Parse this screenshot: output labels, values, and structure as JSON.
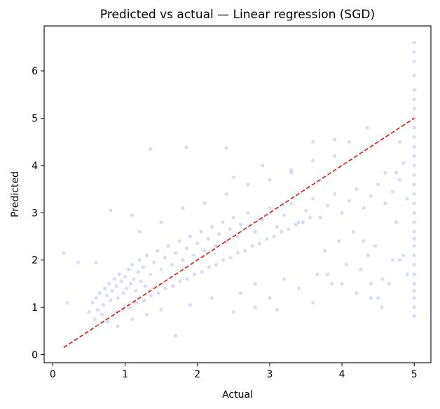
{
  "chart_data": {
    "type": "scatter",
    "title": "Predicted vs actual — Linear regression (SGD)",
    "xlabel": "Actual",
    "ylabel": "Predicted",
    "xlim": [
      -0.12,
      5.23
    ],
    "ylim": [
      -0.17,
      6.95
    ],
    "xticks": [
      0,
      1,
      2,
      3,
      4,
      5
    ],
    "yticks": [
      0,
      1,
      2,
      3,
      4,
      5,
      6
    ],
    "grid": false,
    "series": [
      {
        "kind": "scatter",
        "color": "#7b8af0",
        "opacity": 0.3,
        "points": [
          [
            0.5,
            0.9
          ],
          [
            0.55,
            1.1
          ],
          [
            0.6,
            1.2
          ],
          [
            0.62,
            0.95
          ],
          [
            0.65,
            1.3
          ],
          [
            0.7,
            1.05
          ],
          [
            0.72,
            1.4
          ],
          [
            0.75,
            1.25
          ],
          [
            0.78,
            1.5
          ],
          [
            0.8,
            1.15
          ],
          [
            0.82,
            1.35
          ],
          [
            0.85,
            1.6
          ],
          [
            0.88,
            1.45
          ],
          [
            0.9,
            1.2
          ],
          [
            0.92,
            1.7
          ],
          [
            0.95,
            1.55
          ],
          [
            0.98,
            1.3
          ],
          [
            1.0,
            1.65
          ],
          [
            1.02,
            1.4
          ],
          [
            1.05,
            1.8
          ],
          [
            1.08,
            1.5
          ],
          [
            1.1,
            1.9
          ],
          [
            1.12,
            1.6
          ],
          [
            1.15,
            1.35
          ],
          [
            1.18,
            1.75
          ],
          [
            1.2,
            2.0
          ],
          [
            1.22,
            1.55
          ],
          [
            1.25,
            1.85
          ],
          [
            1.28,
            1.45
          ],
          [
            1.3,
            2.1
          ],
          [
            1.35,
            1.7
          ],
          [
            1.4,
            1.95
          ],
          [
            1.45,
            2.2
          ],
          [
            1.5,
            1.8
          ],
          [
            1.55,
            2.05
          ],
          [
            1.6,
            2.3
          ],
          [
            1.65,
            1.9
          ],
          [
            1.7,
            2.15
          ],
          [
            1.75,
            2.4
          ],
          [
            1.8,
            2.0
          ],
          [
            1.85,
            2.25
          ],
          [
            1.9,
            2.5
          ],
          [
            1.95,
            2.1
          ],
          [
            2.0,
            2.35
          ],
          [
            2.05,
            2.6
          ],
          [
            2.1,
            2.2
          ],
          [
            2.15,
            2.45
          ],
          [
            2.2,
            2.7
          ],
          [
            2.25,
            2.3
          ],
          [
            2.3,
            2.55
          ],
          [
            2.35,
            2.8
          ],
          [
            2.4,
            2.4
          ],
          [
            2.45,
            2.65
          ],
          [
            2.5,
            2.9
          ],
          [
            2.55,
            2.5
          ],
          [
            2.6,
            2.75
          ],
          [
            2.7,
            3.0
          ],
          [
            2.8,
            2.6
          ],
          [
            2.9,
            2.85
          ],
          [
            3.0,
            3.1
          ],
          [
            3.1,
            2.7
          ],
          [
            3.2,
            2.95
          ],
          [
            3.3,
            3.2
          ],
          [
            3.4,
            2.8
          ],
          [
            3.5,
            3.05
          ],
          [
            3.6,
            3.3
          ],
          [
            3.7,
            2.9
          ],
          [
            3.8,
            3.15
          ],
          [
            3.9,
            3.4
          ],
          [
            4.0,
            3.0
          ],
          [
            4.1,
            3.25
          ],
          [
            4.2,
            3.5
          ],
          [
            4.3,
            3.1
          ],
          [
            4.4,
            3.35
          ],
          [
            4.5,
            3.6
          ],
          [
            4.6,
            3.2
          ],
          [
            4.7,
            3.45
          ],
          [
            4.8,
            3.7
          ],
          [
            4.9,
            3.3
          ],
          [
            0.58,
            0.75
          ],
          [
            0.68,
            0.85
          ],
          [
            0.76,
            0.7
          ],
          [
            0.88,
            0.9
          ],
          [
            0.96,
            0.95
          ],
          [
            1.06,
            1.0
          ],
          [
            1.16,
            1.1
          ],
          [
            1.26,
            1.15
          ],
          [
            1.36,
            1.25
          ],
          [
            1.46,
            1.3
          ],
          [
            1.56,
            1.4
          ],
          [
            1.66,
            1.45
          ],
          [
            1.76,
            1.55
          ],
          [
            1.86,
            1.6
          ],
          [
            1.96,
            1.7
          ],
          [
            2.06,
            1.75
          ],
          [
            2.16,
            1.85
          ],
          [
            2.26,
            1.9
          ],
          [
            2.36,
            2.0
          ],
          [
            2.46,
            2.05
          ],
          [
            2.56,
            2.15
          ],
          [
            2.66,
            2.2
          ],
          [
            2.76,
            2.3
          ],
          [
            2.86,
            2.35
          ],
          [
            2.96,
            2.45
          ],
          [
            3.06,
            2.5
          ],
          [
            3.16,
            2.6
          ],
          [
            3.26,
            2.65
          ],
          [
            3.36,
            2.75
          ],
          [
            3.46,
            2.8
          ],
          [
            3.56,
            2.9
          ],
          [
            3.66,
            1.7
          ],
          [
            3.76,
            2.2
          ],
          [
            3.86,
            1.5
          ],
          [
            3.96,
            2.4
          ],
          [
            4.06,
            1.9
          ],
          [
            4.16,
            2.6
          ],
          [
            4.26,
            1.8
          ],
          [
            4.36,
            2.1
          ],
          [
            4.46,
            2.3
          ],
          [
            4.56,
            1.6
          ],
          [
            2.6,
            1.3
          ],
          [
            2.8,
            1.5
          ],
          [
            3.0,
            1.2
          ],
          [
            3.2,
            1.6
          ],
          [
            3.4,
            1.4
          ],
          [
            3.6,
            1.1
          ],
          [
            3.8,
            1.7
          ],
          [
            4.0,
            1.5
          ],
          [
            4.2,
            1.3
          ],
          [
            4.4,
            1.2
          ],
          [
            0.2,
            1.1
          ],
          [
            0.15,
            2.15
          ],
          [
            0.35,
            1.95
          ],
          [
            0.6,
            1.95
          ],
          [
            0.8,
            3.05
          ],
          [
            1.1,
            2.95
          ],
          [
            1.35,
            4.35
          ],
          [
            1.85,
            4.38
          ],
          [
            2.4,
            4.37
          ],
          [
            2.5,
            3.75
          ],
          [
            2.9,
            4.0
          ],
          [
            3.3,
            3.85
          ],
          [
            3.6,
            4.5
          ],
          [
            3.9,
            4.55
          ],
          [
            4.1,
            4.5
          ],
          [
            4.35,
            4.8
          ],
          [
            4.6,
            3.85
          ],
          [
            4.75,
            3.85
          ],
          [
            4.8,
            4.5
          ],
          [
            4.85,
            4.05
          ],
          [
            4.4,
            1.5
          ],
          [
            4.55,
            1.0
          ],
          [
            4.65,
            1.5
          ],
          [
            4.5,
            1.2
          ],
          [
            4.3,
            2.4
          ],
          [
            4.7,
            2.0
          ],
          [
            4.8,
            2.0
          ],
          [
            4.9,
            1.7
          ],
          [
            4.85,
            2.1
          ],
          [
            4.75,
            2.8
          ],
          [
            1.2,
            2.6
          ],
          [
            1.5,
            2.8
          ],
          [
            1.8,
            3.1
          ],
          [
            2.1,
            3.2
          ],
          [
            2.4,
            3.4
          ],
          [
            2.7,
            3.6
          ],
          [
            3.0,
            3.7
          ],
          [
            3.3,
            3.9
          ],
          [
            3.6,
            4.1
          ],
          [
            3.9,
            4.2
          ],
          [
            0.9,
            0.6
          ],
          [
            1.1,
            0.75
          ],
          [
            1.3,
            0.85
          ],
          [
            1.5,
            0.95
          ],
          [
            1.7,
            0.4
          ],
          [
            1.9,
            1.05
          ],
          [
            2.2,
            1.2
          ],
          [
            2.5,
            0.9
          ],
          [
            2.8,
            1.0
          ],
          [
            3.1,
            0.95
          ],
          [
            5.0,
            0.82
          ],
          [
            5.0,
            1.0
          ],
          [
            5.0,
            1.2
          ],
          [
            5.0,
            1.35
          ],
          [
            5.0,
            1.5
          ],
          [
            5.0,
            1.7
          ],
          [
            5.0,
            1.9
          ],
          [
            5.0,
            2.1
          ],
          [
            5.0,
            2.3
          ],
          [
            5.0,
            2.45
          ],
          [
            5.0,
            2.6
          ],
          [
            5.0,
            2.8
          ],
          [
            5.0,
            3.0
          ],
          [
            5.0,
            3.2
          ],
          [
            5.0,
            3.4
          ],
          [
            5.0,
            3.6
          ],
          [
            5.0,
            3.8
          ],
          [
            5.0,
            4.0
          ],
          [
            5.0,
            4.2
          ],
          [
            5.0,
            4.4
          ],
          [
            5.0,
            4.6
          ],
          [
            5.0,
            4.8
          ],
          [
            5.0,
            5.0
          ],
          [
            5.0,
            5.2
          ],
          [
            5.0,
            5.4
          ],
          [
            5.0,
            5.6
          ],
          [
            5.0,
            5.9
          ],
          [
            5.0,
            6.2
          ],
          [
            5.0,
            6.4
          ],
          [
            5.0,
            6.6
          ]
        ]
      },
      {
        "kind": "line",
        "color": "#ee1111",
        "dashed": true,
        "points": [
          [
            0.15,
            0.15
          ],
          [
            5.0,
            5.0
          ]
        ]
      }
    ]
  }
}
